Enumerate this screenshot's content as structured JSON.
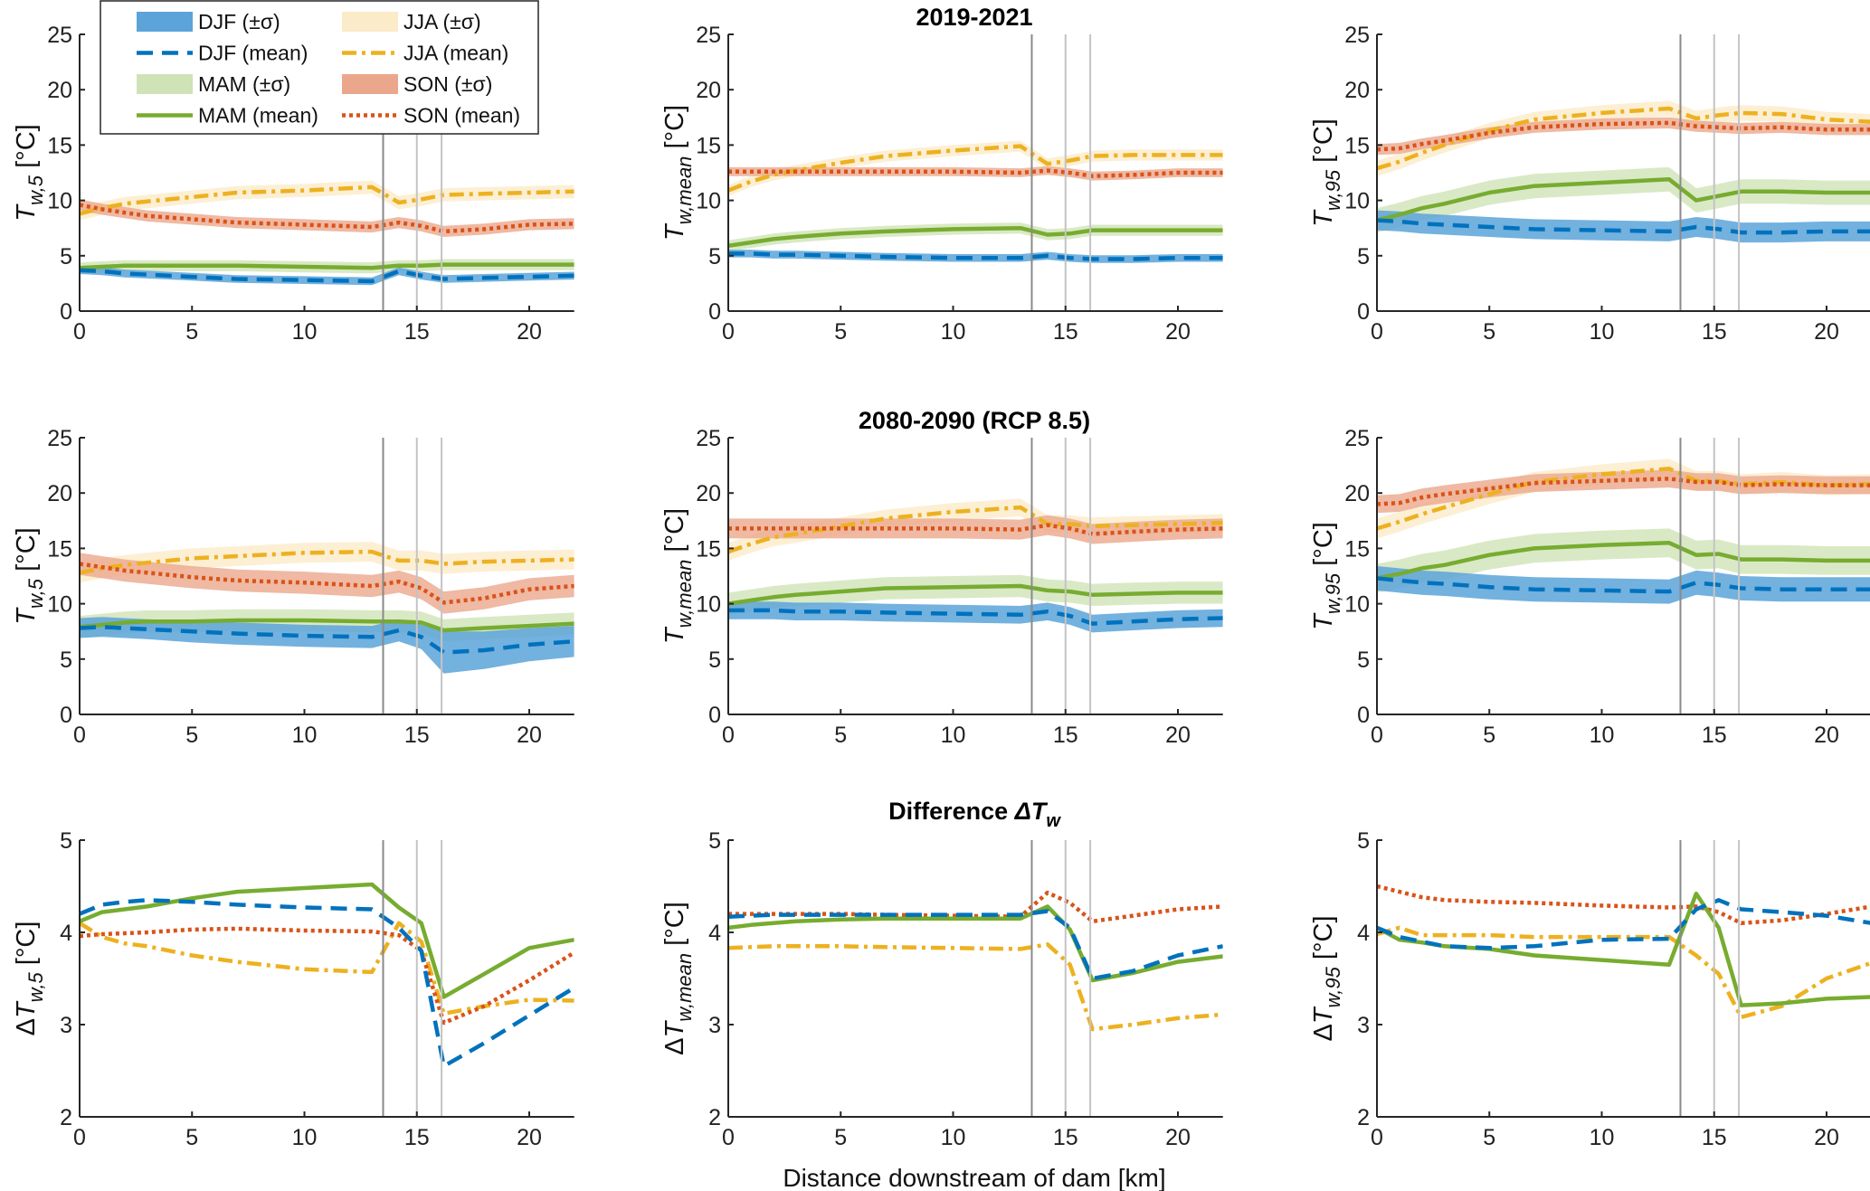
{
  "chart_data": {
    "type": "line",
    "x_label": "Distance downstream of dam [km]",
    "x": [
      0,
      1,
      2,
      3,
      5,
      7,
      10,
      13,
      14.2,
      15.2,
      16.2,
      18,
      20,
      22
    ],
    "xlim": [
      0,
      22
    ],
    "x_ticks": [
      0,
      5,
      10,
      15,
      20
    ],
    "reference_lines_x": [
      13.5,
      15,
      16.1
    ],
    "colors": {
      "DJF": "#0072BD",
      "DJF_fill": "#5BA3D9",
      "JJA": "#EDB120",
      "JJA_fill": "#FBEBC9",
      "MAM": "#77AC30",
      "MAM_fill": "#CFE3B6",
      "SON": "#D95319",
      "SON_fill": "#EBA78C"
    },
    "legend": {
      "placement": "top-left",
      "entries": [
        "DJF (±σ)",
        "JJA (±σ)",
        "DJF (mean)",
        "JJA (mean)",
        "MAM (±σ)",
        "SON (±σ)",
        "MAM (mean)",
        "SON (mean)"
      ]
    },
    "row_titles": [
      "2019-2021",
      "2080-2090 (RCP 8.5)",
      "Difference ΔT_w"
    ],
    "title_parts": {
      "diff_prefix": "Difference ",
      "diff_main": "ΔT",
      "diff_sub": "w"
    },
    "panels": [
      {
        "row": 0,
        "col": 0,
        "ylabel": {
          "prefix": "",
          "main": "T",
          "sub": "w,5",
          "unit": " [°C]"
        },
        "ylim": [
          0,
          25
        ],
        "y_ticks": [
          0,
          5,
          10,
          15,
          20,
          25
        ],
        "band": true,
        "series": {
          "DJF": {
            "mean": [
              3.7,
              3.6,
              3.4,
              3.3,
              3.1,
              2.9,
              2.8,
              2.7,
              3.6,
              3.2,
              2.9,
              3.0,
              3.1,
              3.2
            ],
            "sd": 0.35
          },
          "JJA": {
            "mean": [
              8.8,
              9.3,
              9.7,
              9.9,
              10.3,
              10.7,
              10.9,
              11.2,
              9.8,
              10.1,
              10.5,
              10.6,
              10.7,
              10.8
            ],
            "sd": 0.6
          },
          "MAM": {
            "mean": [
              3.9,
              4.0,
              4.1,
              4.1,
              4.1,
              4.1,
              4.0,
              3.9,
              4.1,
              4.1,
              4.2,
              4.2,
              4.2,
              4.2
            ],
            "sd": 0.5
          },
          "SON": {
            "mean": [
              9.6,
              9.2,
              8.9,
              8.6,
              8.3,
              8.0,
              7.8,
              7.6,
              8.0,
              7.7,
              7.2,
              7.4,
              7.8,
              7.9
            ],
            "sd": 0.5
          }
        }
      },
      {
        "row": 0,
        "col": 1,
        "ylabel": {
          "prefix": "",
          "main": "T",
          "sub": "w,mean",
          "unit": " [°C]"
        },
        "ylim": [
          0,
          25
        ],
        "y_ticks": [
          0,
          5,
          10,
          15,
          20,
          25
        ],
        "band": true,
        "series": {
          "DJF": {
            "mean": [
              5.2,
              5.2,
              5.1,
              5.1,
              5.0,
              4.9,
              4.8,
              4.8,
              5.0,
              4.8,
              4.7,
              4.7,
              4.8,
              4.8
            ],
            "sd": 0.35
          },
          "JJA": {
            "mean": [
              10.9,
              11.7,
              12.3,
              12.7,
              13.4,
              14.0,
              14.5,
              14.9,
              13.3,
              13.6,
              14.0,
              14.1,
              14.1,
              14.1
            ],
            "sd": 0.5
          },
          "MAM": {
            "mean": [
              5.9,
              6.2,
              6.5,
              6.7,
              7.0,
              7.2,
              7.4,
              7.5,
              6.9,
              7.0,
              7.3,
              7.3,
              7.3,
              7.3
            ],
            "sd": 0.5
          },
          "SON": {
            "mean": [
              12.6,
              12.6,
              12.6,
              12.6,
              12.6,
              12.6,
              12.6,
              12.5,
              12.7,
              12.5,
              12.2,
              12.3,
              12.5,
              12.5
            ],
            "sd": 0.4
          }
        }
      },
      {
        "row": 0,
        "col": 2,
        "ylabel": {
          "prefix": "",
          "main": "T",
          "sub": "w,95",
          "unit": " [°C]"
        },
        "ylim": [
          0,
          25
        ],
        "y_ticks": [
          0,
          5,
          10,
          15,
          20,
          25
        ],
        "band": true,
        "series": {
          "DJF": {
            "mean": [
              8.2,
              8.1,
              7.9,
              7.8,
              7.6,
              7.4,
              7.3,
              7.2,
              7.6,
              7.4,
              7.1,
              7.1,
              7.2,
              7.2
            ],
            "sd": 0.9
          },
          "JJA": {
            "mean": [
              12.9,
              13.5,
              14.3,
              15.0,
              16.3,
              17.3,
              17.9,
              18.3,
              17.4,
              17.7,
              17.9,
              17.8,
              17.3,
              17.1
            ],
            "sd": 0.7
          },
          "MAM": {
            "mean": [
              8.2,
              8.7,
              9.3,
              9.7,
              10.7,
              11.3,
              11.6,
              11.9,
              10.0,
              10.4,
              10.8,
              10.8,
              10.7,
              10.7
            ],
            "sd": 1.1
          },
          "SON": {
            "mean": [
              14.6,
              14.7,
              15.1,
              15.4,
              16.1,
              16.6,
              16.9,
              17.0,
              16.7,
              16.6,
              16.5,
              16.6,
              16.4,
              16.4
            ],
            "sd": 0.5
          }
        }
      },
      {
        "row": 1,
        "col": 0,
        "ylabel": {
          "prefix": "",
          "main": "T",
          "sub": "w,5",
          "unit": " [°C]"
        },
        "ylim": [
          0,
          25
        ],
        "y_ticks": [
          0,
          5,
          10,
          15,
          20,
          25
        ],
        "band": true,
        "series": {
          "DJF": {
            "mean": [
              7.8,
              7.9,
              7.8,
              7.7,
              7.5,
              7.3,
              7.1,
              7.0,
              7.6,
              7.0,
              5.6,
              5.8,
              6.3,
              6.6
            ],
            "sd": [
              0.9,
              0.9,
              0.9,
              0.9,
              1.0,
              1.0,
              1.0,
              1.0,
              1.0,
              1.1,
              1.9,
              1.7,
              1.5,
              1.4
            ]
          },
          "JJA": {
            "mean": [
              12.8,
              13.2,
              13.5,
              13.7,
              14.1,
              14.3,
              14.6,
              14.7,
              13.9,
              13.9,
              13.6,
              13.8,
              13.9,
              14.0
            ],
            "sd": 0.9
          },
          "MAM": {
            "mean": [
              7.9,
              8.1,
              8.3,
              8.4,
              8.4,
              8.5,
              8.5,
              8.4,
              8.4,
              8.3,
              7.6,
              7.8,
              8.0,
              8.2
            ],
            "sd": 1.0
          },
          "SON": {
            "mean": [
              13.6,
              13.3,
              13.0,
              12.8,
              12.4,
              12.1,
              11.9,
              11.6,
              12.0,
              11.4,
              10.1,
              10.5,
              11.3,
              11.6
            ],
            "sd": 1.0
          }
        }
      },
      {
        "row": 1,
        "col": 1,
        "ylabel": {
          "prefix": "",
          "main": "T",
          "sub": "w,mean",
          "unit": " [°C]"
        },
        "ylim": [
          0,
          25
        ],
        "y_ticks": [
          0,
          5,
          10,
          15,
          20,
          25
        ],
        "band": true,
        "series": {
          "DJF": {
            "mean": [
              9.4,
              9.4,
              9.4,
              9.3,
              9.3,
              9.2,
              9.1,
              9.0,
              9.3,
              8.9,
              8.2,
              8.4,
              8.6,
              8.7
            ],
            "sd": 0.8
          },
          "JJA": {
            "mean": [
              14.7,
              15.4,
              16.0,
              16.3,
              17.0,
              17.7,
              18.3,
              18.7,
              17.2,
              17.2,
              17.0,
              17.1,
              17.2,
              17.3
            ],
            "sd": 0.8
          },
          "MAM": {
            "mean": [
              10.0,
              10.3,
              10.6,
              10.8,
              11.1,
              11.4,
              11.5,
              11.6,
              11.2,
              11.1,
              10.8,
              10.9,
              11.0,
              11.0
            ],
            "sd": 1.0
          },
          "SON": {
            "mean": [
              16.8,
              16.8,
              16.8,
              16.8,
              16.8,
              16.8,
              16.8,
              16.7,
              17.1,
              16.8,
              16.3,
              16.5,
              16.7,
              16.8
            ],
            "sd": 0.9
          }
        }
      },
      {
        "row": 1,
        "col": 2,
        "ylabel": {
          "prefix": "",
          "main": "T",
          "sub": "w,95",
          "unit": " [°C]"
        },
        "ylim": [
          0,
          25
        ],
        "y_ticks": [
          0,
          5,
          10,
          15,
          20,
          25
        ],
        "band": true,
        "series": {
          "DJF": {
            "mean": [
              12.3,
              12.1,
              11.9,
              11.8,
              11.5,
              11.3,
              11.2,
              11.1,
              11.9,
              11.7,
              11.4,
              11.3,
              11.3,
              11.3
            ],
            "sd": 1.1
          },
          "JJA": {
            "mean": [
              16.8,
              17.4,
              18.1,
              18.7,
              19.9,
              21.0,
              21.7,
              22.2,
              21.1,
              21.1,
              20.8,
              21.0,
              20.7,
              20.8
            ],
            "sd": 0.9
          },
          "MAM": {
            "mean": [
              12.3,
              12.7,
              13.2,
              13.5,
              14.4,
              15.0,
              15.3,
              15.5,
              14.4,
              14.5,
              14.0,
              14.0,
              13.9,
              13.9
            ],
            "sd": 1.3
          },
          "SON": {
            "mean": [
              19.0,
              19.1,
              19.6,
              19.9,
              20.4,
              20.9,
              21.1,
              21.3,
              21.0,
              21.0,
              20.7,
              20.8,
              20.7,
              20.7
            ],
            "sd": 0.8
          }
        }
      },
      {
        "row": 2,
        "col": 0,
        "ylabel": {
          "prefix": "Δ",
          "main": "T",
          "sub": "w,5",
          "unit": " [°C]"
        },
        "ylim": [
          2,
          5
        ],
        "y_ticks": [
          2,
          3,
          4,
          5
        ],
        "band": false,
        "series": {
          "DJF": {
            "mean": [
              4.2,
              4.3,
              4.33,
              4.35,
              4.33,
              4.3,
              4.27,
              4.25,
              4.05,
              3.8,
              2.55,
              2.8,
              3.1,
              3.4
            ]
          },
          "JJA": {
            "mean": [
              4.1,
              3.95,
              3.88,
              3.85,
              3.75,
              3.68,
              3.6,
              3.57,
              4.1,
              3.9,
              3.12,
              3.2,
              3.27,
              3.26
            ]
          },
          "MAM": {
            "mean": [
              4.12,
              4.22,
              4.25,
              4.28,
              4.37,
              4.44,
              4.48,
              4.52,
              4.27,
              4.1,
              3.3,
              3.55,
              3.83,
              3.92
            ]
          },
          "SON": {
            "mean": [
              3.96,
              3.98,
              3.99,
              4.0,
              4.03,
              4.04,
              4.02,
              4.01,
              3.97,
              3.8,
              3.02,
              3.2,
              3.48,
              3.78
            ]
          }
        }
      },
      {
        "row": 2,
        "col": 1,
        "ylabel": {
          "prefix": "Δ",
          "main": "T",
          "sub": "w,mean",
          "unit": " [°C]"
        },
        "ylim": [
          2,
          5
        ],
        "y_ticks": [
          2,
          3,
          4,
          5
        ],
        "band": false,
        "series": {
          "DJF": {
            "mean": [
              4.17,
              4.18,
              4.19,
              4.19,
              4.19,
              4.19,
              4.19,
              4.19,
              4.23,
              4.05,
              3.5,
              3.58,
              3.75,
              3.85
            ]
          },
          "JJA": {
            "mean": [
              3.83,
              3.84,
              3.85,
              3.85,
              3.85,
              3.84,
              3.83,
              3.82,
              3.87,
              3.65,
              2.95,
              3.0,
              3.07,
              3.11
            ]
          },
          "MAM": {
            "mean": [
              4.05,
              4.08,
              4.1,
              4.12,
              4.14,
              4.15,
              4.15,
              4.15,
              4.28,
              4.03,
              3.48,
              3.56,
              3.68,
              3.74
            ]
          },
          "SON": {
            "mean": [
              4.2,
              4.2,
              4.2,
              4.2,
              4.2,
              4.19,
              4.18,
              4.17,
              4.43,
              4.32,
              4.12,
              4.18,
              4.25,
              4.28
            ]
          }
        }
      },
      {
        "row": 2,
        "col": 2,
        "ylabel": {
          "prefix": "Δ",
          "main": "T",
          "sub": "w,95",
          "unit": " [°C]"
        },
        "ylim": [
          2,
          5
        ],
        "y_ticks": [
          2,
          3,
          4,
          5
        ],
        "band": false,
        "series": {
          "DJF": {
            "mean": [
              4.05,
              3.95,
              3.9,
              3.85,
              3.83,
              3.85,
              3.92,
              3.93,
              4.25,
              4.35,
              4.25,
              4.22,
              4.18,
              4.1
            ]
          },
          "JJA": {
            "mean": [
              3.98,
              4.05,
              3.97,
              3.97,
              3.97,
              3.95,
              3.95,
              3.95,
              3.75,
              3.55,
              3.08,
              3.2,
              3.5,
              3.67
            ]
          },
          "MAM": {
            "mean": [
              4.05,
              3.92,
              3.89,
              3.85,
              3.82,
              3.75,
              3.7,
              3.65,
              4.42,
              4.05,
              3.21,
              3.23,
              3.28,
              3.3
            ]
          },
          "SON": {
            "mean": [
              4.5,
              4.44,
              4.38,
              4.35,
              4.33,
              4.32,
              4.29,
              4.27,
              4.28,
              4.22,
              4.1,
              4.13,
              4.2,
              4.28
            ]
          }
        }
      }
    ]
  }
}
